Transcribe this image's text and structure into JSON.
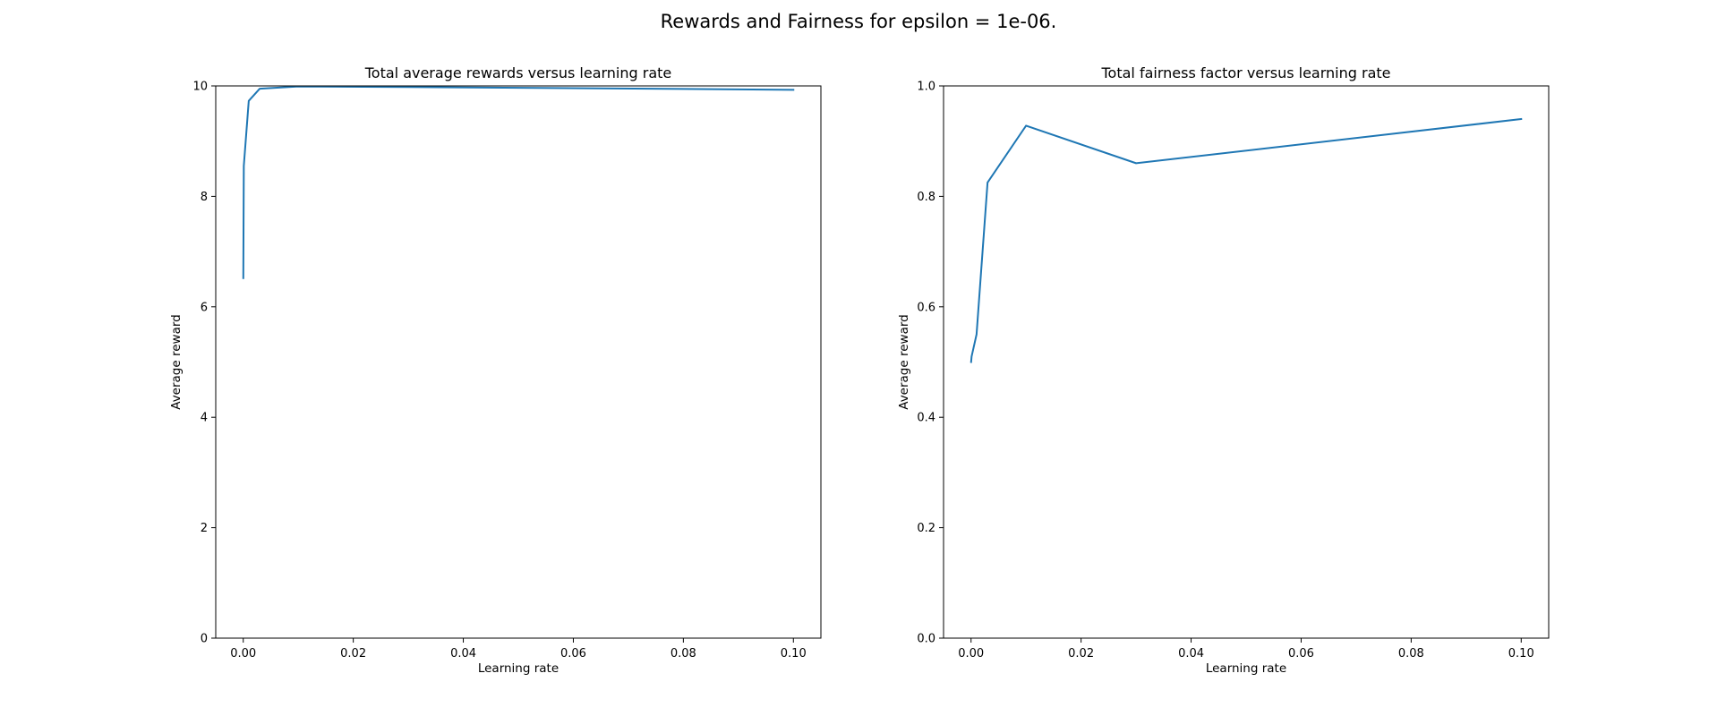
{
  "figure": {
    "title": "Rewards and Fairness for epsilon = 1e-06."
  },
  "chart_data": [
    {
      "type": "line",
      "title": "Total average rewards versus learning rate",
      "xlabel": "Learning rate",
      "ylabel": "Average reward",
      "xlim": [
        -0.005,
        0.105
      ],
      "ylim": [
        0,
        10
      ],
      "xticks": [
        0.0,
        0.02,
        0.04,
        0.06,
        0.08,
        0.1
      ],
      "xtick_labels": [
        "0.00",
        "0.02",
        "0.04",
        "0.06",
        "0.08",
        "0.10"
      ],
      "yticks": [
        0,
        2,
        4,
        6,
        8,
        10
      ],
      "ytick_labels": [
        "0",
        "2",
        "4",
        "6",
        "8",
        "10"
      ],
      "grid": false,
      "series": [
        {
          "color": "#1f77b4",
          "x": [
            1e-05,
            0.0001,
            0.001,
            0.003,
            0.01,
            0.03,
            0.1
          ],
          "y": [
            6.52,
            8.55,
            9.73,
            9.95,
            9.99,
            9.98,
            9.93
          ]
        }
      ]
    },
    {
      "type": "line",
      "title": "Total fairness factor versus learning rate",
      "xlabel": "Learning rate",
      "ylabel": "Average reward",
      "xlim": [
        -0.005,
        0.105
      ],
      "ylim": [
        0,
        1
      ],
      "xticks": [
        0.0,
        0.02,
        0.04,
        0.06,
        0.08,
        0.1
      ],
      "xtick_labels": [
        "0.00",
        "0.02",
        "0.04",
        "0.06",
        "0.08",
        "0.10"
      ],
      "yticks": [
        0,
        0.2,
        0.4,
        0.6,
        0.8,
        1.0
      ],
      "ytick_labels": [
        "0.0",
        "0.2",
        "0.4",
        "0.6",
        "0.8",
        "1.0"
      ],
      "grid": false,
      "series": [
        {
          "color": "#1f77b4",
          "x": [
            1e-05,
            0.0001,
            0.001,
            0.003,
            0.01,
            0.03,
            0.1
          ],
          "y": [
            0.5,
            0.51,
            0.55,
            0.825,
            0.928,
            0.86,
            0.94
          ]
        }
      ]
    }
  ]
}
